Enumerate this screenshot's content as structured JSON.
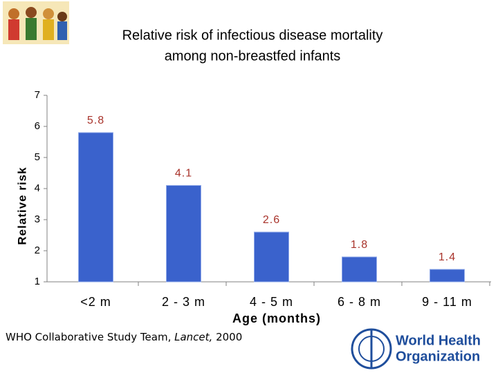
{
  "chart_data": {
    "type": "bar",
    "title": [
      "Relative risk of infectious disease mortality",
      "among non-breastfed infants"
    ],
    "y_label": "Relative risk",
    "x_label": "Age (months)",
    "categories": [
      "<2 m",
      "2 - 3 m",
      "4 - 5 m",
      "6 - 8 m",
      "9 - 11 m"
    ],
    "values": [
      5.8,
      4.1,
      2.6,
      1.8,
      1.4
    ],
    "color": "#3a62cc",
    "label_color": "#a8322a",
    "ylim": [
      1,
      7
    ],
    "yticks": [
      1,
      2,
      3,
      4,
      5,
      6,
      7
    ],
    "grid": false
  },
  "source": {
    "authors": "WHO Collaborative Study Team,",
    "journal": "Lancet,",
    "year": "2000"
  },
  "logo": [
    "World Health",
    "Organization"
  ]
}
